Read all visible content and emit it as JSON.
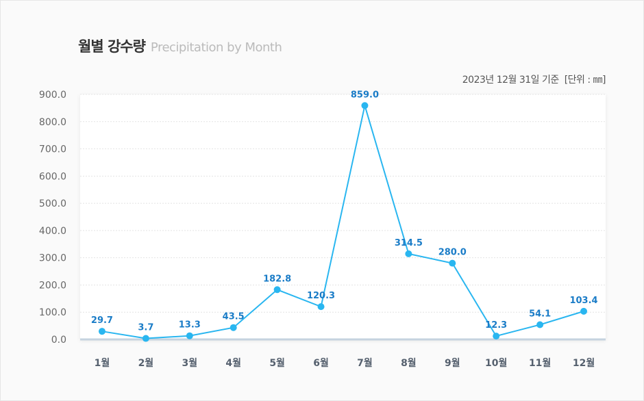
{
  "header": {
    "title": "월별 강수량",
    "subtitle": "Precipitation by Month",
    "basis": "2023년 12월 31일 기준",
    "unit": "[단위 : ㎜]"
  },
  "colors": {
    "line": "#29b6f0",
    "label": "#1a7cc7",
    "axis_text": "#666",
    "category_text": "#55606e",
    "baseline": "#c5d3df"
  },
  "chart_data": {
    "type": "line",
    "title": "월별 강수량",
    "categories": [
      "1월",
      "2월",
      "3월",
      "4월",
      "5월",
      "6월",
      "7월",
      "8월",
      "9월",
      "10월",
      "11월",
      "12월"
    ],
    "series": [
      {
        "values": [
          29.7,
          3.7,
          13.3,
          43.5,
          182.8,
          120.3,
          859.0,
          314.5,
          280.0,
          12.3,
          54.1,
          103.4
        ]
      }
    ],
    "data_labels": [
      "29.7",
      "3.7",
      "13.3",
      "43.5",
      "182.8",
      "120.3",
      "859.0",
      "314.5",
      "280.0",
      "12.3",
      "54.1",
      "103.4"
    ],
    "ylim": [
      0,
      900
    ],
    "yticks": [
      "0.0",
      "100.0",
      "200.0",
      "300.0",
      "400.0",
      "500.0",
      "600.0",
      "700.0",
      "800.0",
      "900.0"
    ],
    "grid": true,
    "xlabel": "",
    "ylabel": ""
  }
}
